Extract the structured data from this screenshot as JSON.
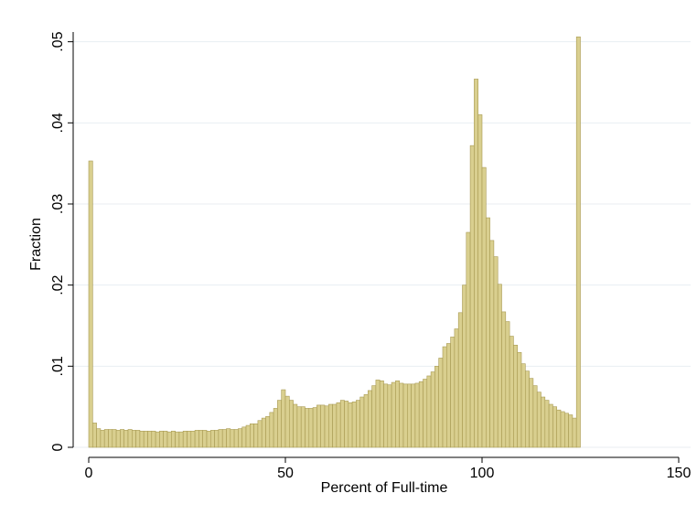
{
  "chart_data": {
    "type": "histogram",
    "xlabel": "Percent of Full-time",
    "ylabel": "Fraction",
    "color": "#d9cf8f",
    "edgecolor": "#a89a52",
    "bins": [
      0,
      1,
      2,
      3,
      4,
      5,
      6,
      7,
      8,
      9,
      10,
      11,
      12,
      13,
      14,
      15,
      16,
      17,
      18,
      19,
      20,
      21,
      22,
      23,
      24,
      25,
      26,
      27,
      28,
      29,
      30,
      31,
      32,
      33,
      34,
      35,
      36,
      37,
      38,
      39,
      40,
      41,
      42,
      43,
      44,
      45,
      46,
      47,
      48,
      49,
      50,
      51,
      52,
      53,
      54,
      55,
      56,
      57,
      58,
      59,
      60,
      61,
      62,
      63,
      64,
      65,
      66,
      67,
      68,
      69,
      70,
      71,
      72,
      73,
      74,
      75,
      76,
      77,
      78,
      79,
      80,
      81,
      82,
      83,
      84,
      85,
      86,
      87,
      88,
      89,
      90,
      91,
      92,
      93,
      94,
      95,
      96,
      97,
      98,
      99,
      100,
      101,
      102,
      103,
      104,
      105,
      106,
      107,
      108,
      109,
      110,
      111,
      112,
      113,
      114,
      115,
      116,
      117,
      118,
      119,
      120,
      121,
      122,
      123,
      124,
      125
    ],
    "values": [
      0.0353,
      0.003,
      0.0023,
      0.0021,
      0.0022,
      0.0022,
      0.0022,
      0.0021,
      0.0022,
      0.0021,
      0.0022,
      0.0021,
      0.0021,
      0.002,
      0.002,
      0.002,
      0.002,
      0.0019,
      0.002,
      0.002,
      0.0019,
      0.002,
      0.0019,
      0.0019,
      0.002,
      0.002,
      0.002,
      0.0021,
      0.0021,
      0.0021,
      0.002,
      0.0021,
      0.0021,
      0.0022,
      0.0022,
      0.0023,
      0.0022,
      0.0022,
      0.0023,
      0.0025,
      0.0027,
      0.0029,
      0.0029,
      0.0033,
      0.0036,
      0.0038,
      0.0043,
      0.0048,
      0.0058,
      0.0071,
      0.0063,
      0.0058,
      0.0053,
      0.005,
      0.005,
      0.0048,
      0.0048,
      0.0049,
      0.0052,
      0.0052,
      0.0051,
      0.0053,
      0.0053,
      0.0055,
      0.0058,
      0.0057,
      0.0055,
      0.0056,
      0.0058,
      0.0062,
      0.0065,
      0.007,
      0.0076,
      0.0083,
      0.0082,
      0.0078,
      0.0077,
      0.008,
      0.0082,
      0.0079,
      0.0078,
      0.0078,
      0.0078,
      0.0079,
      0.0081,
      0.0084,
      0.0088,
      0.0093,
      0.01,
      0.011,
      0.0124,
      0.0128,
      0.0136,
      0.0146,
      0.0166,
      0.02,
      0.0265,
      0.0372,
      0.0454,
      0.041,
      0.0345,
      0.0283,
      0.0255,
      0.0235,
      0.0201,
      0.0167,
      0.0155,
      0.0137,
      0.0126,
      0.0117,
      0.0103,
      0.0094,
      0.0085,
      0.0076,
      0.0068,
      0.0062,
      0.0058,
      0.0053,
      0.005,
      0.0046,
      0.0044,
      0.0042,
      0.004,
      0.0036,
      0.0506
    ],
    "xlim": [
      0,
      150
    ],
    "xticks": [
      0,
      50,
      100,
      150
    ],
    "ylim": [
      0,
      0.0512
    ],
    "yticks": [
      0,
      {
        "value": 0.01,
        "label": ".01"
      },
      {
        "value": 0.02,
        "label": ".02"
      },
      {
        "value": 0.03,
        "label": ".03"
      },
      {
        "value": 0.04,
        "label": ".04"
      },
      {
        "value": 0.05,
        "label": ".05"
      }
    ],
    "grid": true
  }
}
